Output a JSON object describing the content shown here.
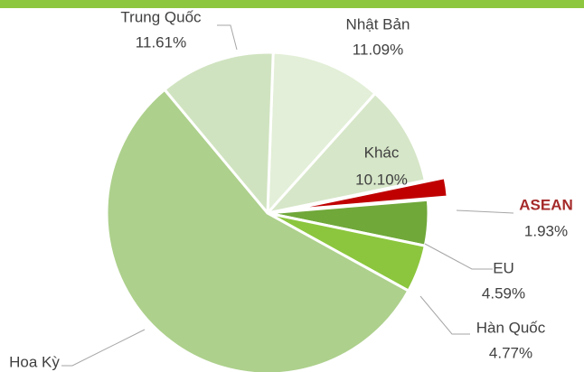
{
  "chart_data": {
    "type": "pie",
    "categories": [
      "Nhật Bản",
      "Khác",
      "ASEAN",
      "EU",
      "Hàn Quốc",
      "Hoa Kỳ",
      "Trung Quốc"
    ],
    "values": [
      11.09,
      10.1,
      1.93,
      4.59,
      4.77,
      55.91,
      11.61
    ],
    "value_labels": [
      "11.09%",
      "10.10%",
      "1.93%",
      "4.59%",
      "4.77%",
      null,
      "11.61%"
    ],
    "colors": [
      "#e3efd8",
      "#d6e6c8",
      "#c00000",
      "#70a83a",
      "#8cc63e",
      "#add08c",
      "#d0e3c0"
    ],
    "exploded": [
      "ASEAN"
    ]
  }
}
